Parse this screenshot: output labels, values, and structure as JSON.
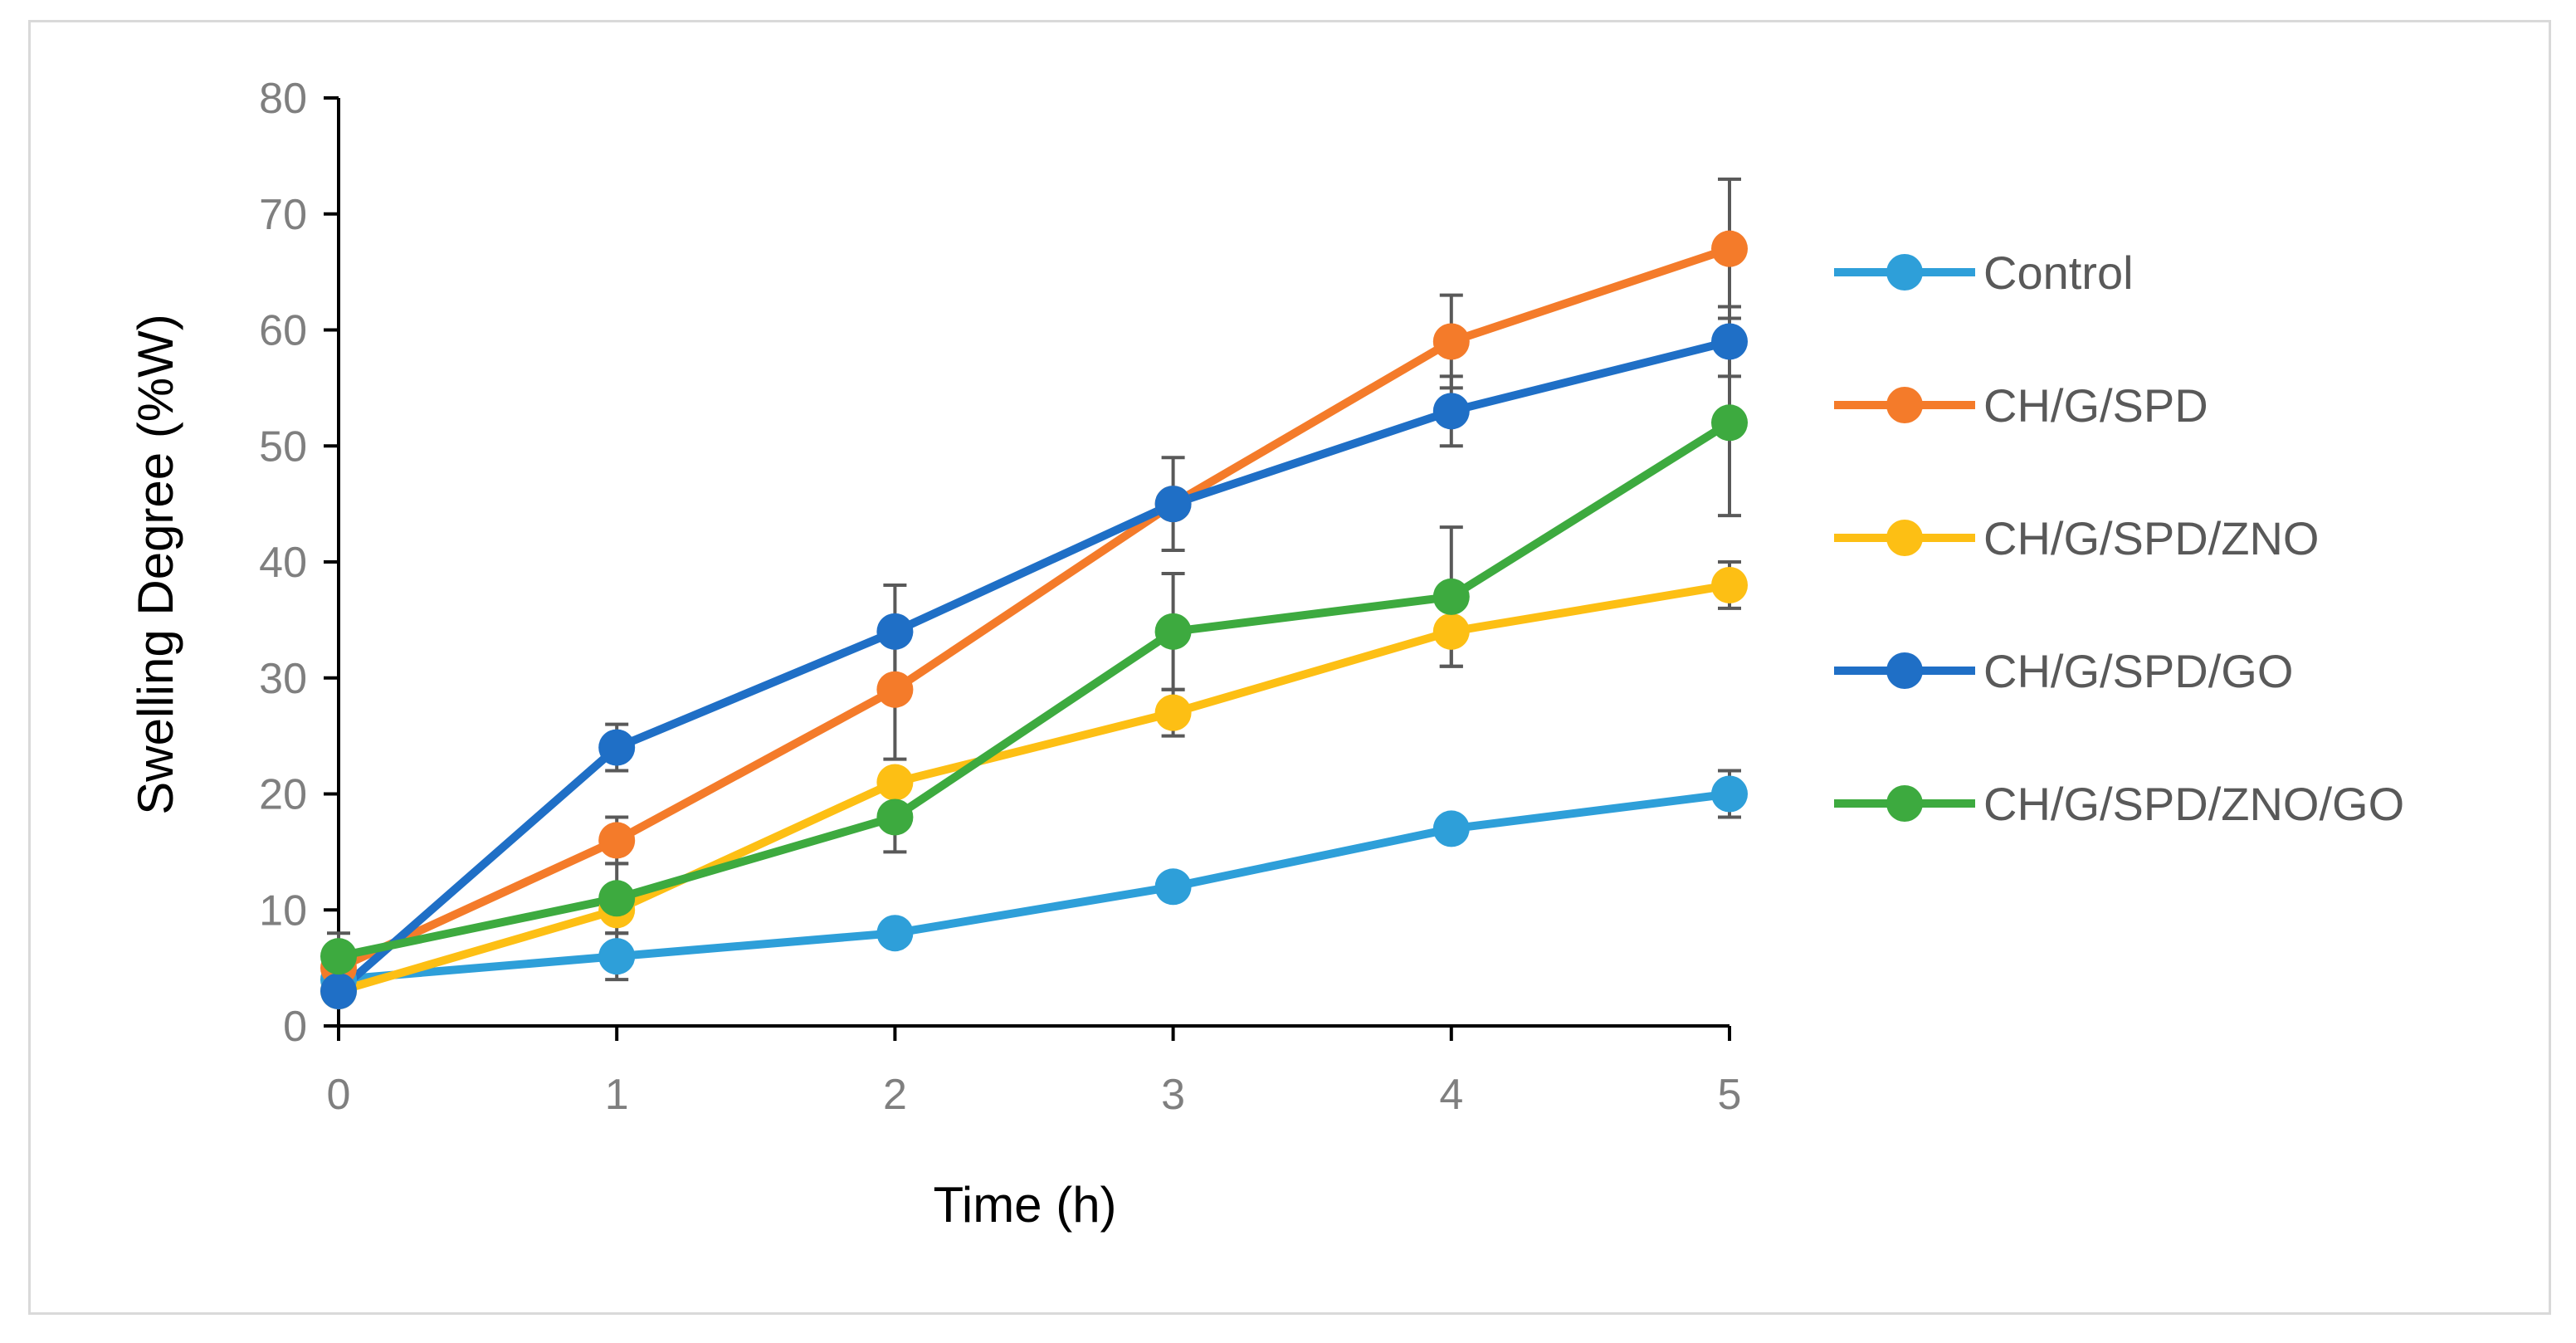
{
  "chart_data": {
    "type": "line",
    "title": "",
    "xlabel": "Time (h)",
    "ylabel": "Swelling Degree (%W)",
    "x": [
      0,
      1,
      2,
      3,
      4,
      5
    ],
    "xlim": [
      0,
      5
    ],
    "ylim": [
      0,
      80
    ],
    "yticks": [
      0,
      10,
      20,
      30,
      40,
      50,
      60,
      70,
      80
    ],
    "xticks": [
      0,
      1,
      2,
      3,
      4,
      5
    ],
    "grid": false,
    "legend_position": "right",
    "series": [
      {
        "name": "Control",
        "color": "#2E9FD9",
        "values": [
          4,
          6,
          8,
          12,
          17,
          20
        ],
        "errors": [
          0,
          2,
          0,
          0,
          0,
          2
        ]
      },
      {
        "name": "CH/G/SPD",
        "color": "#F47B2A",
        "values": [
          5,
          16,
          29,
          45,
          59,
          67
        ],
        "errors": [
          0,
          2,
          6,
          0,
          4,
          6
        ]
      },
      {
        "name": "CH/G/SPD/ZNO",
        "color": "#FDBF14",
        "values": [
          3,
          10,
          21,
          27,
          34,
          38
        ],
        "errors": [
          0,
          0,
          0,
          2,
          3,
          2
        ]
      },
      {
        "name": "CH/G/SPD/GO",
        "color": "#1F6FC6",
        "values": [
          3,
          24,
          34,
          45,
          53,
          59
        ],
        "errors": [
          0,
          2,
          4,
          4,
          3,
          3
        ]
      },
      {
        "name": "CH/G/SPD/ZNO/GO",
        "color": "#3DAA3F",
        "values": [
          6,
          11,
          18,
          34,
          37,
          52
        ],
        "errors": [
          2,
          3,
          3,
          5,
          6,
          8
        ]
      }
    ]
  }
}
